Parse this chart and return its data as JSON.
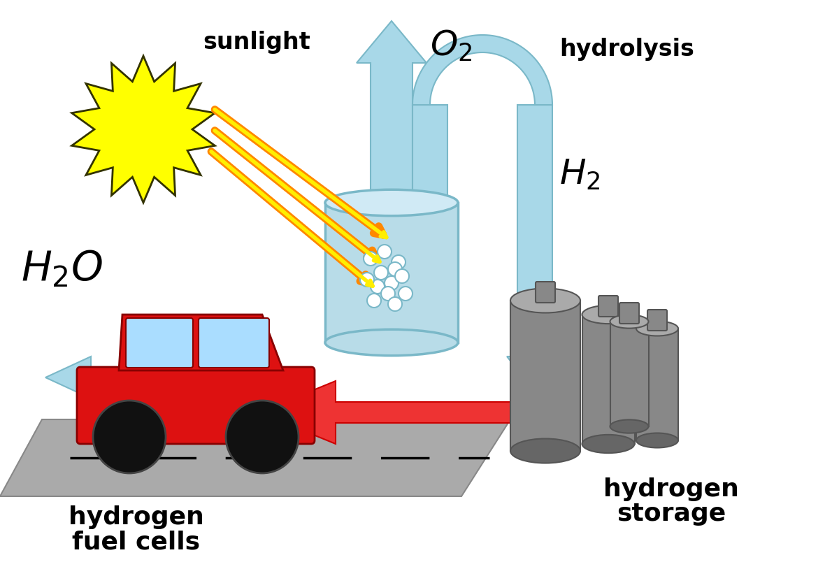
{
  "bg_color": "#ffffff",
  "sun_color": "#ffff00",
  "sun_edge_color": "#333300",
  "sunlight_label": "sunlight",
  "hydrolysis_label": "hydrolysis",
  "h2o_label": "H$_2$O",
  "hfc_label1": "hydrogen",
  "hfc_label2": "fuel cells",
  "hs_label1": "hydrogen",
  "hs_label2": "storage",
  "light_blue": "#a8d8e8",
  "light_blue_edge": "#7ab8c8",
  "ray_color_outer": "#ff8800",
  "ray_color_inner": "#ffee00",
  "car_body_color": "#dd1111",
  "car_window_color": "#aaddff",
  "car_wheel_color": "#111111",
  "road_color": "#aaaaaa",
  "road_edge": "#888888",
  "tank_body_color": "#888888",
  "tank_light": "#aaaaaa",
  "tank_dark": "#666666",
  "tank_edge": "#555555",
  "beaker_fill": "#b8dce8",
  "beaker_edge": "#7ab8c8",
  "bubble_color": "#ffffff",
  "red_arrow_color": "#ee3333",
  "text_color": "#000000"
}
